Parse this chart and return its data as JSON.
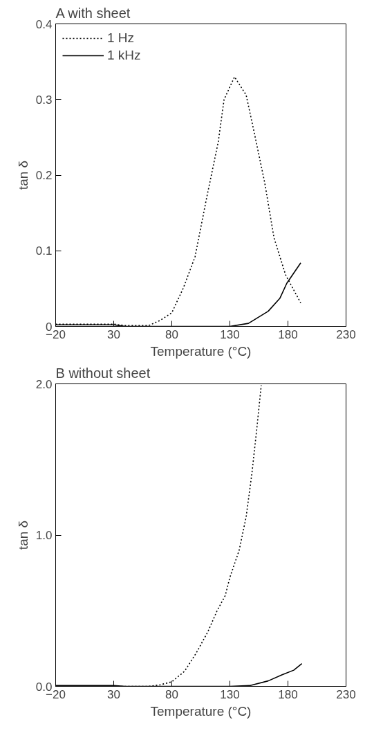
{
  "chart_data": [
    {
      "type": "line",
      "title": "A   with sheet",
      "xlabel": "Temperature (°C)",
      "ylabel": "tan δ",
      "xlim": [
        -20,
        230
      ],
      "ylim": [
        0,
        0.4
      ],
      "xticks": [
        -20,
        30,
        80,
        130,
        180,
        230
      ],
      "yticks": [
        {
          "value": 0,
          "label": "0"
        },
        0.1,
        0.2,
        0.3,
        0.4
      ],
      "grid": false,
      "legend": "top left",
      "marker": "none",
      "series": [
        {
          "name": "1 Hz",
          "color": "#000000",
          "line_style": "dotted",
          "x": [
            -20,
            30,
            40,
            60,
            70,
            80,
            90,
            100,
            110,
            120,
            125,
            134,
            144,
            151,
            160,
            168,
            178,
            191
          ],
          "values": [
            0.003,
            0.003,
            0.001,
            0.001,
            0.008,
            0.018,
            0.051,
            0.092,
            0.17,
            0.244,
            0.3,
            0.33,
            0.306,
            0.256,
            0.19,
            0.117,
            0.068,
            0.031
          ]
        },
        {
          "name": "1 kHz",
          "color": "#000000",
          "line_style": "solid",
          "x": [
            -20,
            30,
            40,
            130,
            146,
            163,
            173,
            179,
            191
          ],
          "values": [
            0.002,
            0.002,
            0,
            0,
            0.004,
            0.02,
            0.037,
            0.057,
            0.084
          ]
        }
      ]
    },
    {
      "type": "line",
      "title": "B   without sheet",
      "xlabel": "Temperature (°C)",
      "ylabel": "tan δ",
      "xlim": [
        -20,
        230
      ],
      "ylim": [
        0,
        2.0
      ],
      "xticks": [
        -20,
        30,
        80,
        130,
        180,
        230
      ],
      "yticks": [
        {
          "value": 0,
          "label": "0.0"
        },
        {
          "value": 1,
          "label": "1.0"
        },
        {
          "value": 2,
          "label": "2.0"
        }
      ],
      "grid": false,
      "marker": "none",
      "series": [
        {
          "color": "#000000",
          "line_style": "dotted",
          "x": [
            -20,
            40,
            60,
            70,
            80,
            91,
            101,
            111,
            119,
            126,
            130,
            138,
            144,
            149,
            153,
            157
          ],
          "values": [
            0,
            0,
            0,
            0.01,
            0.03,
            0.1,
            0.22,
            0.36,
            0.5,
            0.6,
            0.72,
            0.9,
            1.12,
            1.41,
            1.69,
            1.99
          ]
        },
        {
          "color": "#000000",
          "line_style": "solid",
          "x": [
            -20,
            30,
            40,
            130,
            147,
            163,
            175,
            185,
            192
          ],
          "values": [
            0.005,
            0.005,
            0,
            0,
            0.005,
            0.036,
            0.077,
            0.107,
            0.15
          ]
        }
      ]
    }
  ]
}
